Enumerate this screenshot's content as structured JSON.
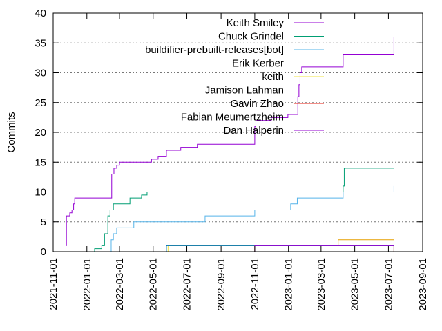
{
  "chart_data": {
    "type": "line",
    "xlabel": "",
    "ylabel": "Commits",
    "xlim": [
      "2021-11-01",
      "2023-09-01"
    ],
    "ylim": [
      0,
      40
    ],
    "grid": "horizontal dotted",
    "legend_position": "top-right",
    "x_ticks": [
      "2021-11-01",
      "2022-01-01",
      "2022-03-01",
      "2022-05-01",
      "2022-07-01",
      "2022-09-01",
      "2022-11-01",
      "2023-01-01",
      "2023-03-01",
      "2023-05-01",
      "2023-07-01",
      "2023-09-01"
    ],
    "y_ticks": [
      0,
      5,
      10,
      15,
      20,
      25,
      30,
      35,
      40
    ],
    "series": [
      {
        "name": "Keith Smiley",
        "color": "#9400d3",
        "points": [
          [
            "2021-11-24",
            1
          ],
          [
            "2021-11-25",
            6
          ],
          [
            "2021-12-01",
            6.5
          ],
          [
            "2021-12-05",
            7
          ],
          [
            "2021-12-08",
            8
          ],
          [
            "2021-12-10",
            9
          ],
          [
            "2022-02-14",
            9
          ],
          [
            "2022-02-15",
            13
          ],
          [
            "2022-02-17",
            13
          ],
          [
            "2022-02-19",
            14
          ],
          [
            "2022-02-24",
            14.5
          ],
          [
            "2022-03-01",
            15
          ],
          [
            "2022-04-12",
            15
          ],
          [
            "2022-04-28",
            15.5
          ],
          [
            "2022-05-10",
            16
          ],
          [
            "2022-05-21",
            16
          ],
          [
            "2022-05-25",
            17
          ],
          [
            "2022-06-20",
            17.5
          ],
          [
            "2022-07-20",
            18
          ],
          [
            "2022-10-31",
            18
          ],
          [
            "2022-11-01",
            21
          ],
          [
            "2022-11-03",
            22
          ],
          [
            "2022-12-01",
            22.5
          ],
          [
            "2022-12-31",
            23
          ],
          [
            "2023-01-15",
            23
          ],
          [
            "2023-01-18",
            26
          ],
          [
            "2023-01-20",
            28
          ],
          [
            "2023-01-22",
            30
          ],
          [
            "2023-01-25",
            31
          ],
          [
            "2023-04-08",
            31
          ],
          [
            "2023-04-10",
            33
          ],
          [
            "2023-07-10",
            33
          ],
          [
            "2023-07-11",
            36
          ]
        ]
      },
      {
        "name": "Chuck Grindel",
        "color": "#009e73",
        "points": [
          [
            "2021-12-10",
            0
          ],
          [
            "2022-01-15",
            0.5
          ],
          [
            "2022-01-28",
            1
          ],
          [
            "2022-02-02",
            3
          ],
          [
            "2022-02-08",
            6
          ],
          [
            "2022-02-12",
            7
          ],
          [
            "2022-02-18",
            8
          ],
          [
            "2022-03-01",
            8
          ],
          [
            "2022-03-20",
            9
          ],
          [
            "2022-04-10",
            9.5
          ],
          [
            "2022-04-20",
            10
          ],
          [
            "2023-04-08",
            10
          ],
          [
            "2023-04-10",
            11
          ],
          [
            "2023-04-12",
            14
          ],
          [
            "2023-07-11",
            14
          ]
        ]
      },
      {
        "name": "buildifier-prebuilt-releases[bot]",
        "color": "#56b4e9",
        "points": [
          [
            "2022-02-12",
            0
          ],
          [
            "2022-02-14",
            2
          ],
          [
            "2022-02-18",
            3
          ],
          [
            "2022-02-24",
            4
          ],
          [
            "2022-03-25",
            4
          ],
          [
            "2022-03-27",
            5
          ],
          [
            "2022-08-01",
            5
          ],
          [
            "2022-08-03",
            6
          ],
          [
            "2022-10-31",
            6
          ],
          [
            "2022-11-01",
            7
          ],
          [
            "2022-12-31",
            7
          ],
          [
            "2023-01-05",
            8
          ],
          [
            "2023-01-15",
            8
          ],
          [
            "2023-01-17",
            9
          ],
          [
            "2023-04-08",
            9
          ],
          [
            "2023-04-10",
            10
          ],
          [
            "2023-07-10",
            10
          ],
          [
            "2023-07-11",
            11
          ]
        ]
      },
      {
        "name": "Erik Kerber",
        "color": "#e69f00",
        "points": [
          [
            "2022-07-15",
            0
          ],
          [
            "2022-11-01",
            1
          ],
          [
            "2023-01-25",
            1
          ],
          [
            "2023-04-01",
            2
          ],
          [
            "2023-07-11",
            2
          ]
        ]
      },
      {
        "name": "keith",
        "color": "#f0e442",
        "points": [
          [
            "2022-05-25",
            0
          ],
          [
            "2022-05-28",
            1
          ],
          [
            "2023-07-11",
            1
          ]
        ]
      },
      {
        "name": "Jamison Lahman",
        "color": "#0072b2",
        "points": [
          [
            "2022-05-20",
            0
          ],
          [
            "2022-05-25",
            1
          ],
          [
            "2023-07-11",
            1
          ]
        ]
      },
      {
        "name": "Gavin Zhao",
        "color": "#e51e10",
        "points": [
          [
            "2023-04-15",
            0
          ],
          [
            "2023-07-11",
            1
          ]
        ]
      },
      {
        "name": "Fabian Meumertzheim",
        "color": "#000000",
        "points": [
          [
            "2023-05-01",
            0
          ],
          [
            "2023-07-11",
            1
          ]
        ]
      },
      {
        "name": "Dan Halperin",
        "color": "#9400d3",
        "points": [
          [
            "2022-11-01",
            0
          ],
          [
            "2022-11-01",
            1
          ],
          [
            "2023-07-11",
            1
          ]
        ]
      }
    ]
  }
}
